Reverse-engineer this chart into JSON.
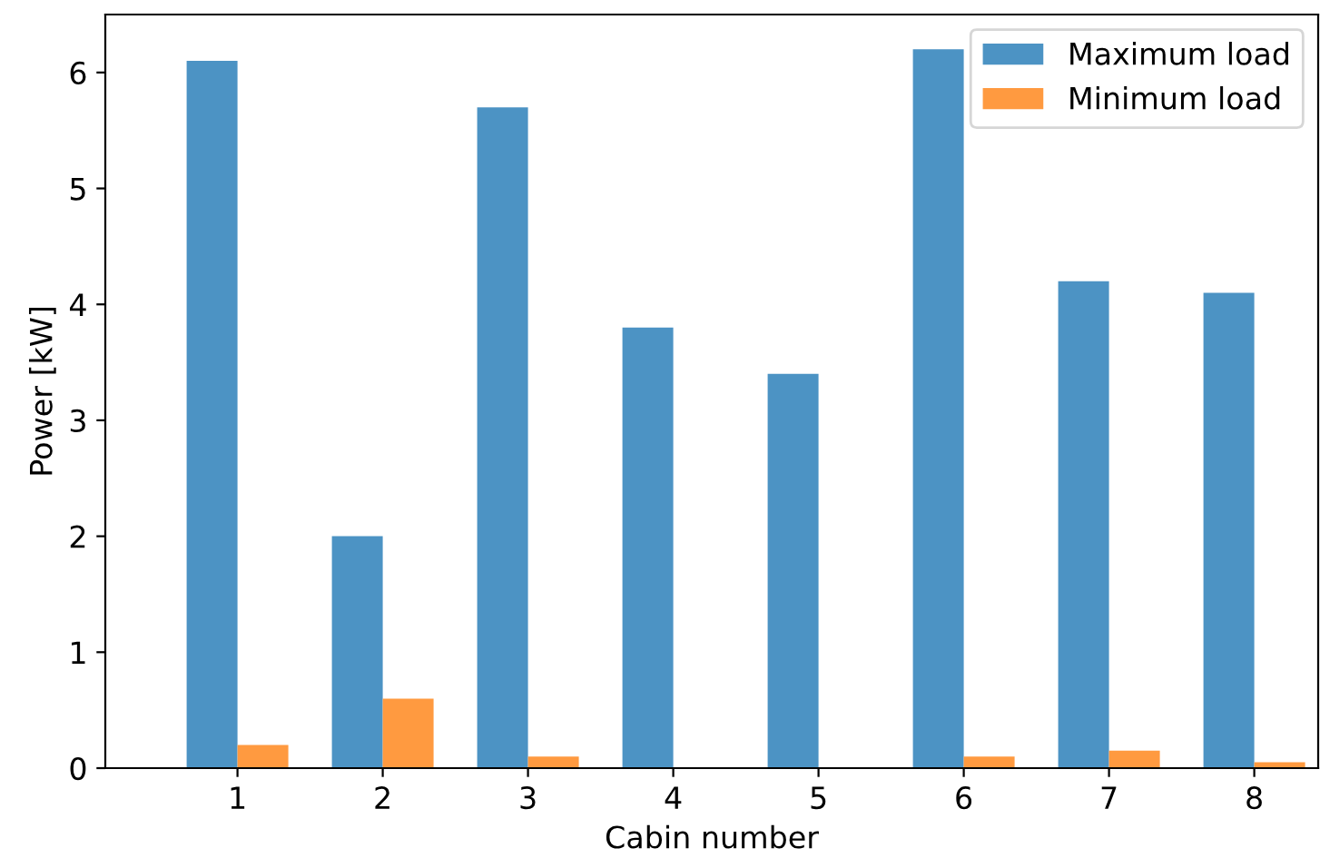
{
  "chart_data": {
    "type": "bar",
    "xlabel": "Cabin number",
    "ylabel": "Power [kW]",
    "categories": [
      "1",
      "2",
      "3",
      "4",
      "5",
      "6",
      "7",
      "8"
    ],
    "series": [
      {
        "name": "Maximum load",
        "color": "#4c93c4",
        "values": [
          6.1,
          2.0,
          5.7,
          3.8,
          3.4,
          6.2,
          4.2,
          4.1
        ]
      },
      {
        "name": "Minimum load",
        "color": "#ff9a40",
        "values": [
          0.2,
          0.6,
          0.1,
          0,
          0,
          0.1,
          0.15,
          0.05
        ]
      }
    ],
    "ylim": [
      0,
      6.5
    ],
    "yticks": [
      0,
      1,
      2,
      3,
      4,
      5,
      6
    ],
    "grid": false,
    "legend": "top right"
  }
}
